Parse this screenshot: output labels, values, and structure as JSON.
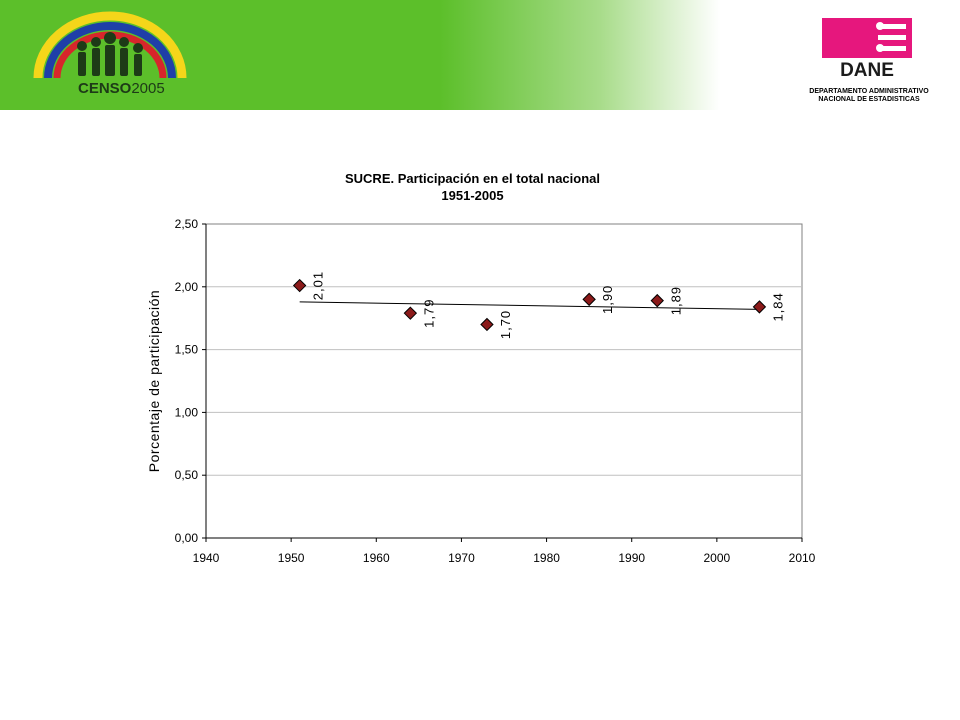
{
  "header": {
    "censo_logo_text": "CENSO2005",
    "censo_logo_text_a": "CENSO",
    "censo_logo_text_b": "2005",
    "dane_logo_text": "DANE",
    "dane_caption_line1": "DEPARTAMENTO ADMINISTRATIVO",
    "dane_caption_line2": "NACIONAL DE ESTADISTICAS"
  },
  "colors": {
    "banner_green": "#5cbf2a",
    "dane_pink": "#e6177d",
    "marker": "#8b1a1a"
  },
  "chart_data": {
    "type": "scatter",
    "title": "SUCRE. Participación en el total nacional",
    "subtitle": "1951-2005",
    "xlabel": "",
    "ylabel": "Porcentaje de participación",
    "xlim": [
      1940,
      2010
    ],
    "ylim": [
      0,
      2.5
    ],
    "x_ticks": [
      "1940",
      "1950",
      "1960",
      "1970",
      "1980",
      "1990",
      "2000",
      "2010"
    ],
    "y_ticks": [
      "0,00",
      "0,50",
      "1,00",
      "1,50",
      "2,00",
      "2,50"
    ],
    "grid": "horizontal",
    "series": [
      {
        "x": [
          1951,
          1964,
          1973,
          1985,
          1993,
          2005
        ],
        "y": [
          2.01,
          1.79,
          1.7,
          1.9,
          1.89,
          1.84
        ],
        "labels": [
          "2,01",
          "1,79",
          "1,70",
          "1,90",
          "1,89",
          "1,84"
        ]
      }
    ],
    "trendline": {
      "x": [
        1951,
        2005
      ],
      "y": [
        1.88,
        1.82
      ]
    }
  }
}
